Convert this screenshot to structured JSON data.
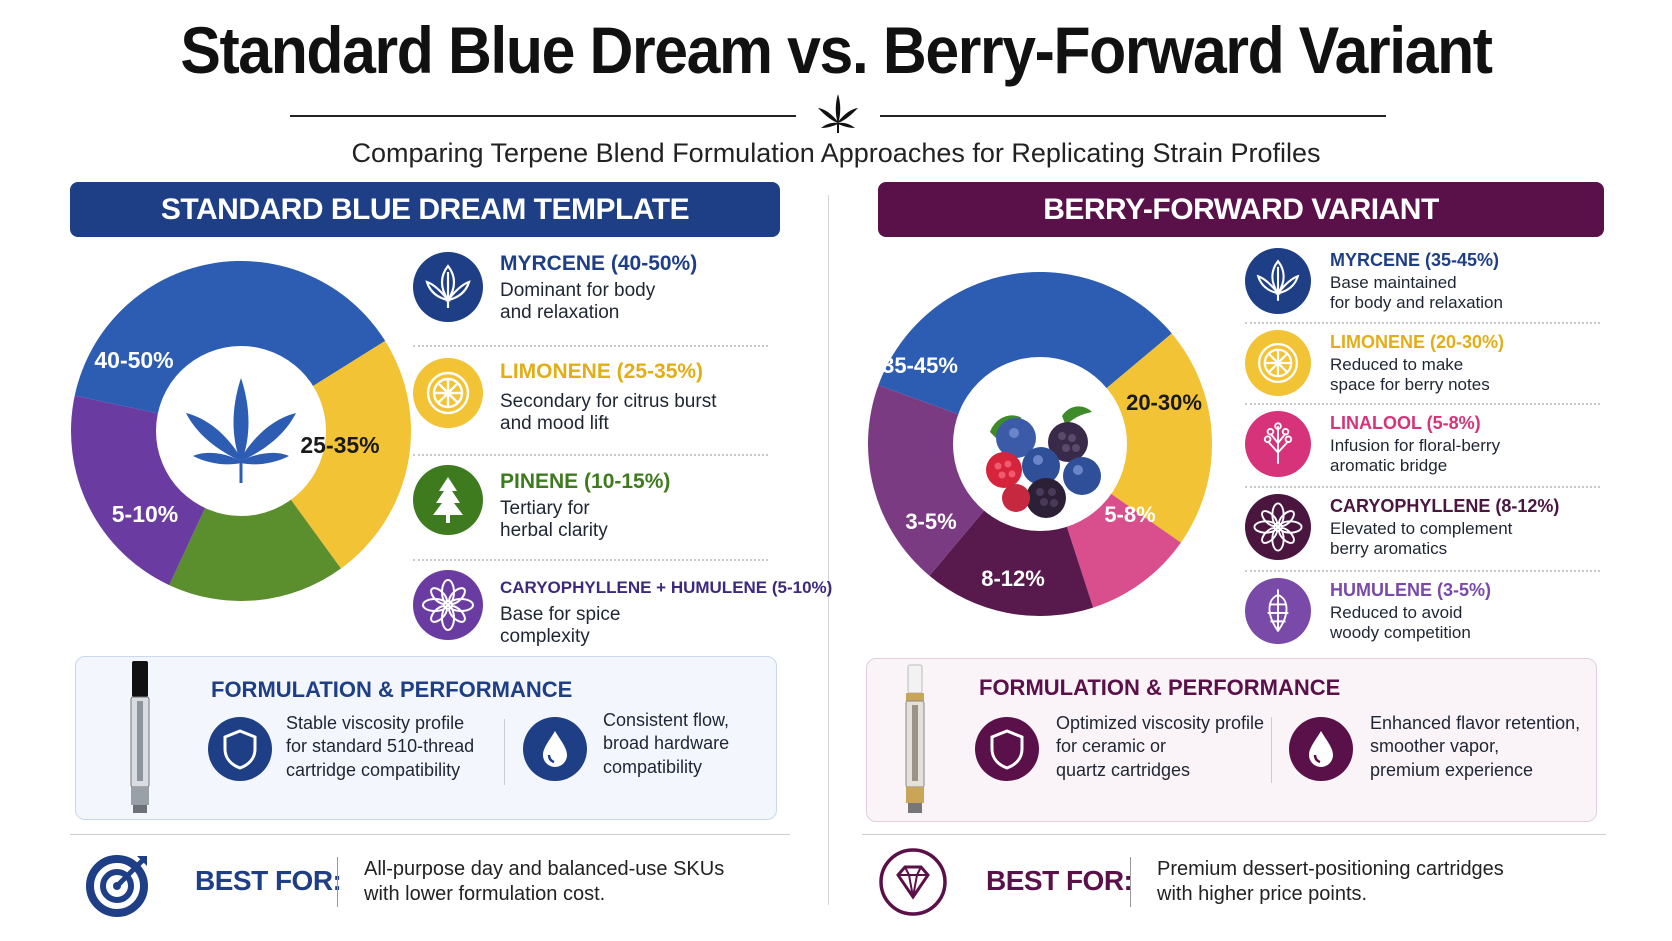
{
  "title": "Standard Blue Dream vs. Berry-Forward Variant",
  "subtitle": "Comparing Terpene Blend Formulation Approaches for Replicating Strain Profiles",
  "left": {
    "banner": "STANDARD BLUE DREAM TEMPLATE",
    "slices": [
      {
        "label": "40-50%",
        "color": "#2c5db3"
      },
      {
        "label": "25-35%",
        "color": "#f2c335"
      },
      {
        "label": "",
        "color": "#5b8e2c"
      },
      {
        "label": "5-10%",
        "color": "#6a3ca2"
      }
    ],
    "center_icon": "cannabis-leaf-icon",
    "legend": [
      {
        "title": "MYRCENE (40-50%)",
        "desc1": "Dominant for body",
        "desc2": "and relaxation",
        "color": "#1e3f86",
        "icon": "leaf-icon"
      },
      {
        "title": "LIMONENE (25-35%)",
        "desc1": "Secondary for citrus burst",
        "desc2": "and mood lift",
        "color": "#e2ae17",
        "icon": "citrus-icon"
      },
      {
        "title": "PINENE (10-15%)",
        "desc1": "Tertiary for",
        "desc2": "herbal clarity",
        "color": "#3e7a1e",
        "icon": "pine-tree-icon"
      },
      {
        "title": "CARYOPHYLLENE + HUMULENE (5-10%)",
        "desc1": "Base for spice",
        "desc2": "complexity",
        "color": "#5b2f95",
        "icon": "flower-icon"
      }
    ],
    "perf": {
      "title": "FORMULATION & PERFORMANCE",
      "item1": [
        "Stable viscosity profile",
        "for standard 510-thread",
        "cartridge compatibility"
      ],
      "item2": [
        "Consistent flow,",
        "broad hardware",
        "compatibility"
      ]
    },
    "best_label": "BEST FOR:",
    "best_text1": "All-purpose day and balanced-use SKUs",
    "best_text2": "with lower formulation cost."
  },
  "right": {
    "banner": "BERRY-FORWARD VARIANT",
    "slices": [
      {
        "label": "35-45%",
        "color": "#2c5db3"
      },
      {
        "label": "20-30%",
        "color": "#f2c335"
      },
      {
        "label": "5-8%",
        "color": "#d94f8e"
      },
      {
        "label": "8-12%",
        "color": "#581a4c"
      },
      {
        "label": "3-5%",
        "color": "#7b3b83"
      }
    ],
    "center_icon": "berries-icon",
    "legend": [
      {
        "title": "MYRCENE (35-45%)",
        "desc1": "Base maintained",
        "desc2": "for body and relaxation",
        "color": "#1e3f86",
        "icon": "leaf-icon"
      },
      {
        "title": "LIMONENE (20-30%)",
        "desc1": "Reduced to make",
        "desc2": "space for berry notes",
        "color": "#e2ae17",
        "icon": "citrus-icon"
      },
      {
        "title": "LINALOOL (5-8%)",
        "desc1": "Infusion for floral-berry",
        "desc2": "aromatic bridge",
        "color": "#d6337a",
        "icon": "lavender-icon"
      },
      {
        "title": "CARYOPHYLLENE (8-12%)",
        "desc1": "Elevated to complement",
        "desc2": "berry aromatics",
        "color": "#4a1640",
        "icon": "flower-icon"
      },
      {
        "title": "HUMULENE (3-5%)",
        "desc1": "Reduced to avoid",
        "desc2": "woody competition",
        "color": "#7a4aa8",
        "icon": "hops-icon"
      }
    ],
    "perf": {
      "title": "FORMULATION & PERFORMANCE",
      "item1": [
        "Optimized viscosity profile",
        "for ceramic or",
        "quartz cartridges"
      ],
      "item2": [
        "Enhanced flavor retention,",
        "smoother vapor,",
        "premium experience"
      ]
    },
    "best_label": "BEST FOR:",
    "best_text1": "Premium dessert-positioning cartridges",
    "best_text2": "with higher price points."
  },
  "colors": {
    "blue_accent": "#1e3f86",
    "purple_accent": "#5a1048",
    "yellow": "#f2c335",
    "green": "#5b8e2c"
  }
}
